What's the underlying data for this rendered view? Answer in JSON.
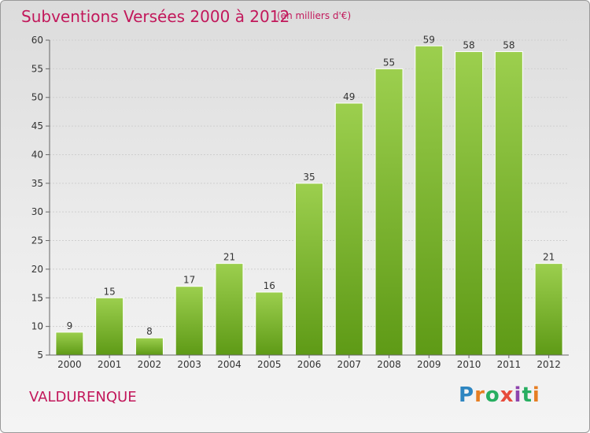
{
  "header": {
    "title": "Subventions Versées 2000 à 2012",
    "subtitle": "(en milliers d'€)"
  },
  "footer": {
    "place": "VALDURENQUE",
    "logo_text": "Proxiti"
  },
  "colors": {
    "title": "#c2185b",
    "bar_top": "#9ccf4e",
    "bar_bottom": "#5e9a16",
    "gridline": "#cfcfcf"
  },
  "chart_data": {
    "type": "bar",
    "title": "Subventions Versées 2000 à 2012",
    "subtitle": "(en milliers d'€)",
    "categories": [
      "2000",
      "2001",
      "2002",
      "2003",
      "2004",
      "2005",
      "2006",
      "2007",
      "2008",
      "2009",
      "2010",
      "2011",
      "2012"
    ],
    "values": [
      9,
      15,
      8,
      17,
      21,
      16,
      35,
      49,
      55,
      59,
      58,
      58,
      21
    ],
    "ylim": [
      5,
      60
    ],
    "yticks": [
      5,
      10,
      15,
      20,
      25,
      30,
      35,
      40,
      45,
      50,
      55,
      60
    ],
    "grid": true,
    "xlabel": "",
    "ylabel": ""
  }
}
